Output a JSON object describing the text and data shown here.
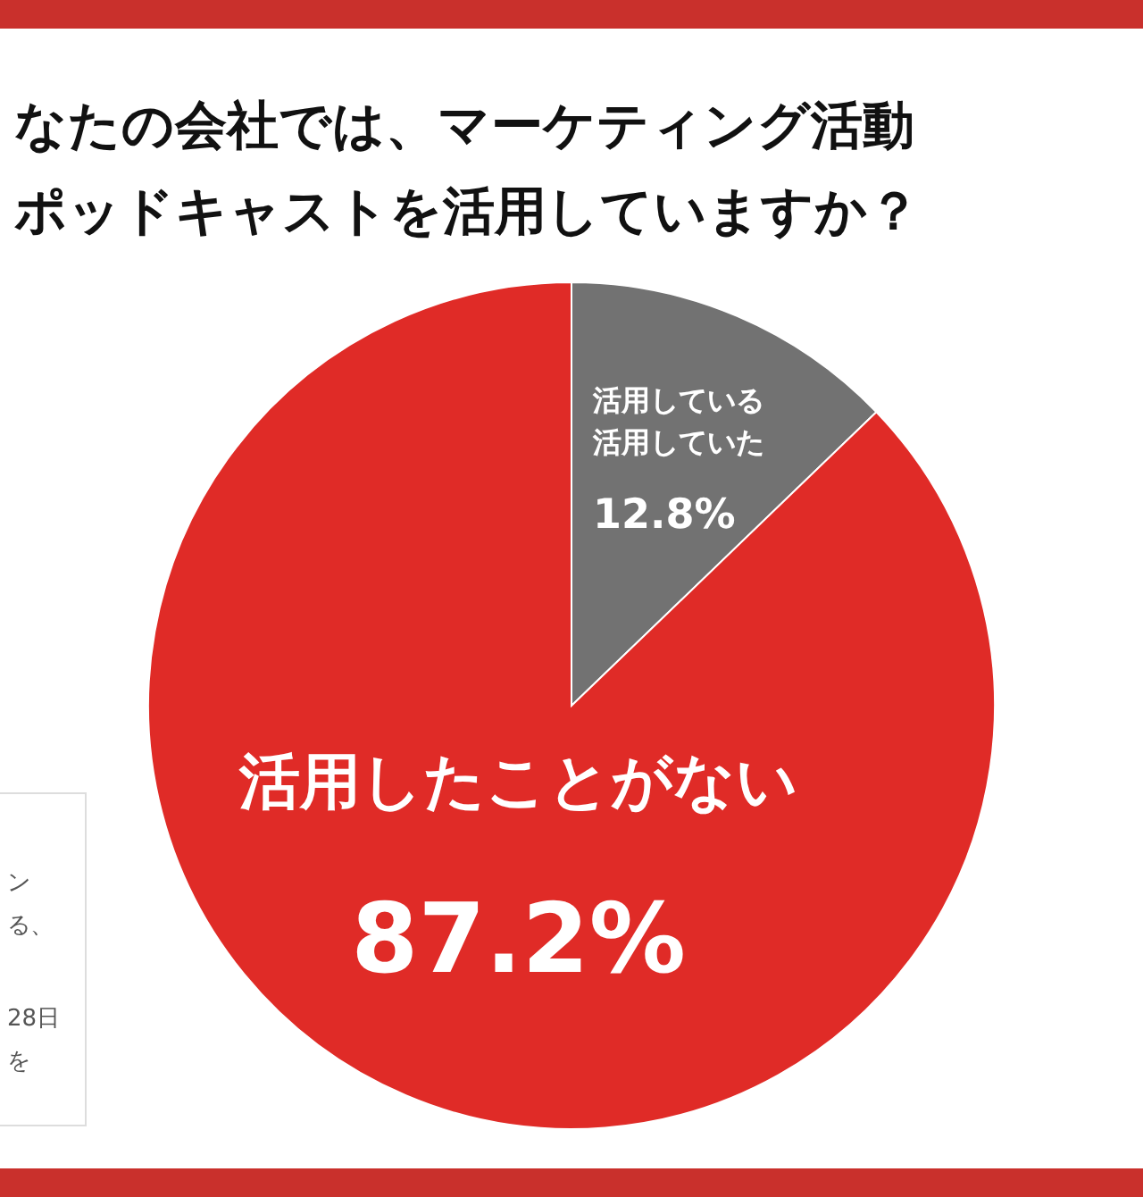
{
  "chart_data": {
    "type": "pie",
    "title": "なたの会社では、マーケティング活動ポッドキャストを活用していますか？",
    "categories": [
      "活用している活用していた",
      "活用したことがない"
    ],
    "values": [
      12.8,
      87.2
    ],
    "value_labels": [
      "12.8%",
      "87.2%"
    ],
    "colors": [
      "#727272",
      "#e02b27"
    ],
    "annotations": [
      "ン",
      "る、",
      "28日",
      "を"
    ]
  }
}
